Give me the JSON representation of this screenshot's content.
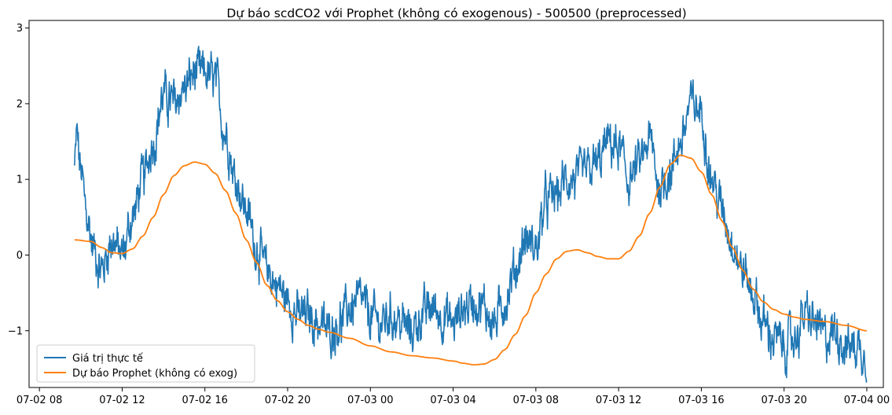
{
  "chart_data": {
    "type": "line",
    "title": "Dự báo scdCO2 với Prophet (không có exogenous) - 500500 (preprocessed)",
    "xlabel": "",
    "ylabel": "",
    "x_ticks": [
      "07-02 08",
      "07-02 12",
      "07-02 16",
      "07-02 20",
      "07-03 00",
      "07-03 04",
      "07-03 08",
      "07-03 12",
      "07-03 16",
      "07-03 20",
      "07-04 00"
    ],
    "x_range_hours": [
      7.5,
      48.8
    ],
    "y_ticks": [
      "3",
      "2",
      "1",
      "0",
      "−1"
    ],
    "ylim": [
      -1.75,
      3.1
    ],
    "grid": false,
    "legend_position": "lower-left",
    "series": [
      {
        "name": "Giá trị thực tế",
        "color": "#1f77b4",
        "noise": 0.28,
        "x_hours": [
          9.7,
          9.8,
          10.0,
          10.3,
          10.6,
          11.0,
          11.5,
          12.0,
          12.5,
          13.0,
          13.5,
          14.0,
          14.5,
          15.0,
          15.5,
          16.0,
          16.5,
          17.0,
          17.5,
          18.0,
          18.5,
          19.0,
          19.5,
          20.0,
          20.5,
          21.0,
          21.5,
          22.0,
          22.5,
          23.0,
          23.5,
          24.0,
          24.5,
          25.0,
          25.5,
          26.0,
          26.5,
          27.0,
          27.5,
          28.0,
          28.5,
          29.0,
          29.5,
          30.0,
          30.5,
          31.0,
          31.5,
          32.0,
          32.5,
          33.0,
          33.5,
          34.0,
          34.5,
          35.0,
          35.5,
          36.0,
          36.5,
          37.0,
          37.5,
          38.0,
          38.5,
          39.0,
          39.5,
          40.0,
          40.5,
          41.0,
          41.5,
          42.0,
          42.5,
          43.0,
          43.5,
          44.0,
          44.5,
          45.0,
          45.5,
          46.0,
          46.5,
          47.0,
          47.5,
          48.0
        ],
        "y": [
          1.15,
          1.6,
          1.1,
          0.5,
          0.1,
          -0.2,
          0.2,
          0.0,
          0.5,
          1.0,
          1.5,
          2.1,
          2.0,
          2.2,
          2.4,
          2.4,
          2.3,
          1.6,
          1.0,
          0.6,
          0.1,
          -0.2,
          -0.4,
          -0.6,
          -0.8,
          -0.8,
          -0.9,
          -1.0,
          -0.9,
          -0.7,
          -0.6,
          -0.8,
          -0.9,
          -0.8,
          -0.9,
          -1.0,
          -0.8,
          -0.7,
          -0.8,
          -0.9,
          -0.7,
          -0.6,
          -0.7,
          -0.9,
          -0.6,
          -0.2,
          0.2,
          0.1,
          0.7,
          0.8,
          1.0,
          1.0,
          1.1,
          1.2,
          1.5,
          1.4,
          1.0,
          1.2,
          1.5,
          0.9,
          1.1,
          1.5,
          2.0,
          1.9,
          1.0,
          0.6,
          0.2,
          -0.2,
          -0.5,
          -0.9,
          -1.1,
          -1.2,
          -1.1,
          -0.8,
          -0.9,
          -1.1,
          -1.0,
          -1.2,
          -1.2,
          -1.3
        ]
      },
      {
        "name": "Dự báo Prophet (không có exog)",
        "color": "#ff7f0e",
        "noise": 0,
        "x_hours": [
          9.7,
          10.5,
          11.0,
          11.5,
          12.0,
          12.5,
          13.0,
          13.5,
          14.0,
          14.5,
          15.0,
          15.5,
          16.0,
          16.5,
          17.0,
          17.5,
          18.0,
          18.5,
          19.0,
          19.5,
          20.0,
          20.5,
          21.0,
          21.5,
          22.0,
          23.0,
          24.0,
          25.0,
          26.0,
          27.0,
          28.0,
          28.5,
          29.0,
          29.5,
          30.0,
          30.5,
          31.0,
          31.5,
          32.0,
          32.5,
          33.0,
          33.5,
          34.0,
          34.5,
          35.0,
          35.5,
          36.0,
          36.5,
          37.0,
          37.5,
          38.0,
          38.5,
          39.0,
          39.5,
          40.0,
          40.5,
          41.0,
          41.5,
          42.0,
          42.5,
          43.0,
          43.5,
          44.0,
          44.5,
          45.0,
          46.0,
          47.0,
          48.0
        ],
        "y": [
          0.2,
          0.18,
          0.1,
          0.03,
          0.02,
          0.08,
          0.25,
          0.5,
          0.8,
          1.05,
          1.18,
          1.23,
          1.2,
          1.08,
          0.85,
          0.55,
          0.2,
          -0.1,
          -0.4,
          -0.6,
          -0.75,
          -0.85,
          -0.93,
          -0.98,
          -1.02,
          -1.1,
          -1.2,
          -1.28,
          -1.33,
          -1.36,
          -1.4,
          -1.43,
          -1.45,
          -1.44,
          -1.38,
          -1.25,
          -1.05,
          -0.8,
          -0.5,
          -0.25,
          -0.05,
          0.05,
          0.07,
          0.03,
          -0.02,
          -0.05,
          -0.05,
          0.05,
          0.25,
          0.55,
          0.9,
          1.2,
          1.32,
          1.28,
          1.1,
          0.8,
          0.45,
          0.1,
          -0.2,
          -0.45,
          -0.62,
          -0.72,
          -0.78,
          -0.82,
          -0.85,
          -0.88,
          -0.93,
          -1.0
        ]
      }
    ]
  }
}
